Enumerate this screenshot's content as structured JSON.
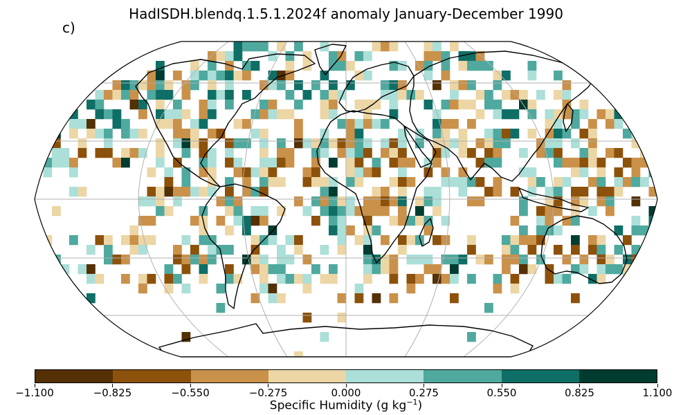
{
  "title": "HadISDH.blendq.1.5.1.2024f anomaly January-December 1990",
  "panel_label": "c)",
  "colorbar": {
    "label_main": "Specific Humidity (g kg",
    "label_exp": "−1",
    "label_close": ")",
    "ticks": [
      "−1.100",
      "−0.825",
      "−0.550",
      "−0.275",
      "0.000",
      "0.275",
      "0.550",
      "0.825",
      "1.100"
    ],
    "tick_values": [
      -1.1,
      -0.825,
      -0.55,
      -0.275,
      0.0,
      0.275,
      0.55,
      0.825,
      1.1
    ],
    "colors": [
      "#543005",
      "#8c510a",
      "#c9914a",
      "#ecd6a5",
      "#abdfd8",
      "#4fa99e",
      "#0f6f66",
      "#003c30"
    ]
  },
  "map": {
    "projection": "Robinson",
    "grid_cell_degrees": 5,
    "gridlines": "grey",
    "coastlines": "black",
    "missing_data": "white"
  }
}
